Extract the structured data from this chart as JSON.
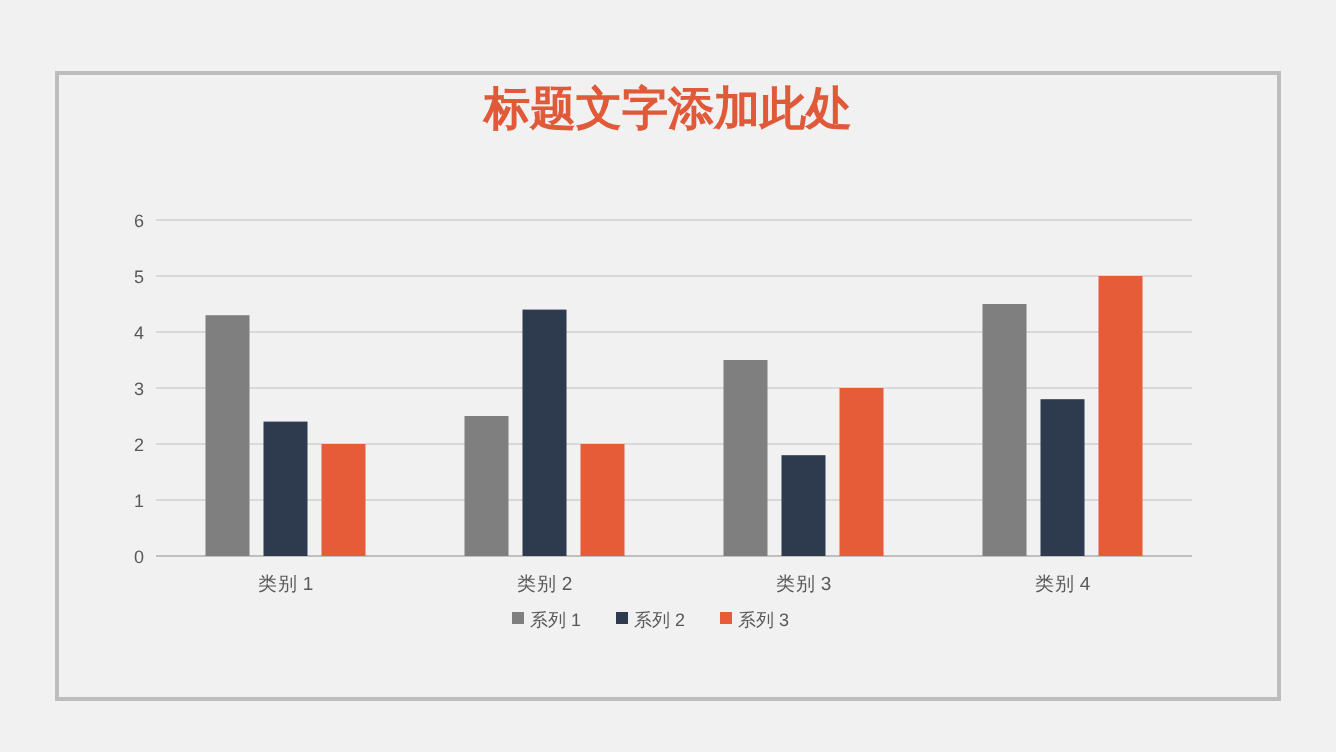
{
  "chart_data": {
    "type": "bar",
    "title": "标题文字添加此处",
    "categories": [
      "类别 1",
      "类别 2",
      "类别 3",
      "类别 4"
    ],
    "series": [
      {
        "name": "系列 1",
        "color": "#7f7f7f",
        "values": [
          4.3,
          2.5,
          3.5,
          4.5
        ]
      },
      {
        "name": "系列 2",
        "color": "#2e3a4d",
        "values": [
          2.4,
          4.4,
          1.8,
          2.8
        ]
      },
      {
        "name": "系列 3",
        "color": "#e65b38",
        "values": [
          2,
          2,
          3,
          5
        ]
      }
    ],
    "ylim": [
      0,
      6
    ],
    "yticks": [
      0,
      1,
      2,
      3,
      4,
      5,
      6
    ],
    "grid": "y",
    "legend": "bottom"
  }
}
